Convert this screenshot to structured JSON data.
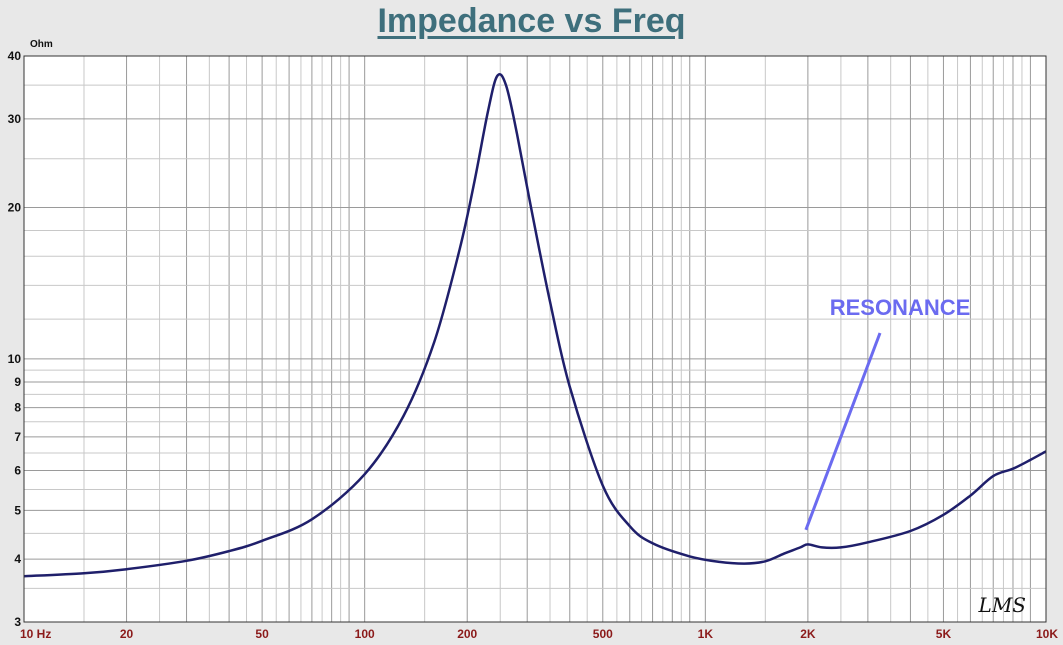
{
  "chart_data": {
    "type": "line",
    "title": "Impedance vs Freq",
    "ylabel": "Ohm",
    "xlabel": "",
    "x_scale": "log",
    "y_scale": "log",
    "xlim": [
      10,
      10000
    ],
    "ylim": [
      3,
      40
    ],
    "grid": true,
    "x_ticks": [
      {
        "value": 10,
        "label": "10  Hz"
      },
      {
        "value": 20,
        "label": "20"
      },
      {
        "value": 50,
        "label": "50"
      },
      {
        "value": 100,
        "label": "100"
      },
      {
        "value": 200,
        "label": "200"
      },
      {
        "value": 500,
        "label": "500"
      },
      {
        "value": 1000,
        "label": "1K"
      },
      {
        "value": 2000,
        "label": "2K"
      },
      {
        "value": 5000,
        "label": "5K"
      },
      {
        "value": 10000,
        "label": "10K"
      }
    ],
    "y_ticks": [
      {
        "value": 40,
        "label": "40"
      },
      {
        "value": 30,
        "label": "30"
      },
      {
        "value": 20,
        "label": "20"
      },
      {
        "value": 10,
        "label": "10"
      },
      {
        "value": 9,
        "label": "9"
      },
      {
        "value": 8,
        "label": "8"
      },
      {
        "value": 7,
        "label": "7"
      },
      {
        "value": 6,
        "label": "6"
      },
      {
        "value": 5,
        "label": "5"
      },
      {
        "value": 4,
        "label": "4"
      },
      {
        "value": 3,
        "label": "3"
      }
    ],
    "series": [
      {
        "color": "#1f1f6b",
        "x": [
          10,
          15,
          20,
          30,
          40,
          50,
          70,
          100,
          130,
          160,
          190,
          210,
          230,
          245,
          260,
          280,
          310,
          350,
          400,
          500,
          600,
          700,
          900,
          1100,
          1300,
          1500,
          1700,
          1900,
          2000,
          2200,
          2500,
          3000,
          4000,
          5000,
          6000,
          7000,
          8000,
          9000,
          10000
        ],
        "y": [
          3.7,
          3.75,
          3.82,
          3.97,
          4.15,
          4.35,
          4.8,
          5.9,
          7.7,
          10.8,
          16.5,
          22.5,
          31,
          36.5,
          35,
          28,
          19.5,
          13,
          8.8,
          5.6,
          4.65,
          4.3,
          4.05,
          3.95,
          3.92,
          3.96,
          4.1,
          4.22,
          4.28,
          4.22,
          4.22,
          4.32,
          4.55,
          4.9,
          5.35,
          5.85,
          6.05,
          6.3,
          6.55
        ]
      }
    ],
    "annotations": [
      {
        "text": "RESONANCE",
        "color": "#6b6bf0",
        "arrow_to": {
          "x": 2000,
          "y": 4.33
        }
      }
    ],
    "watermark": "LMS"
  }
}
